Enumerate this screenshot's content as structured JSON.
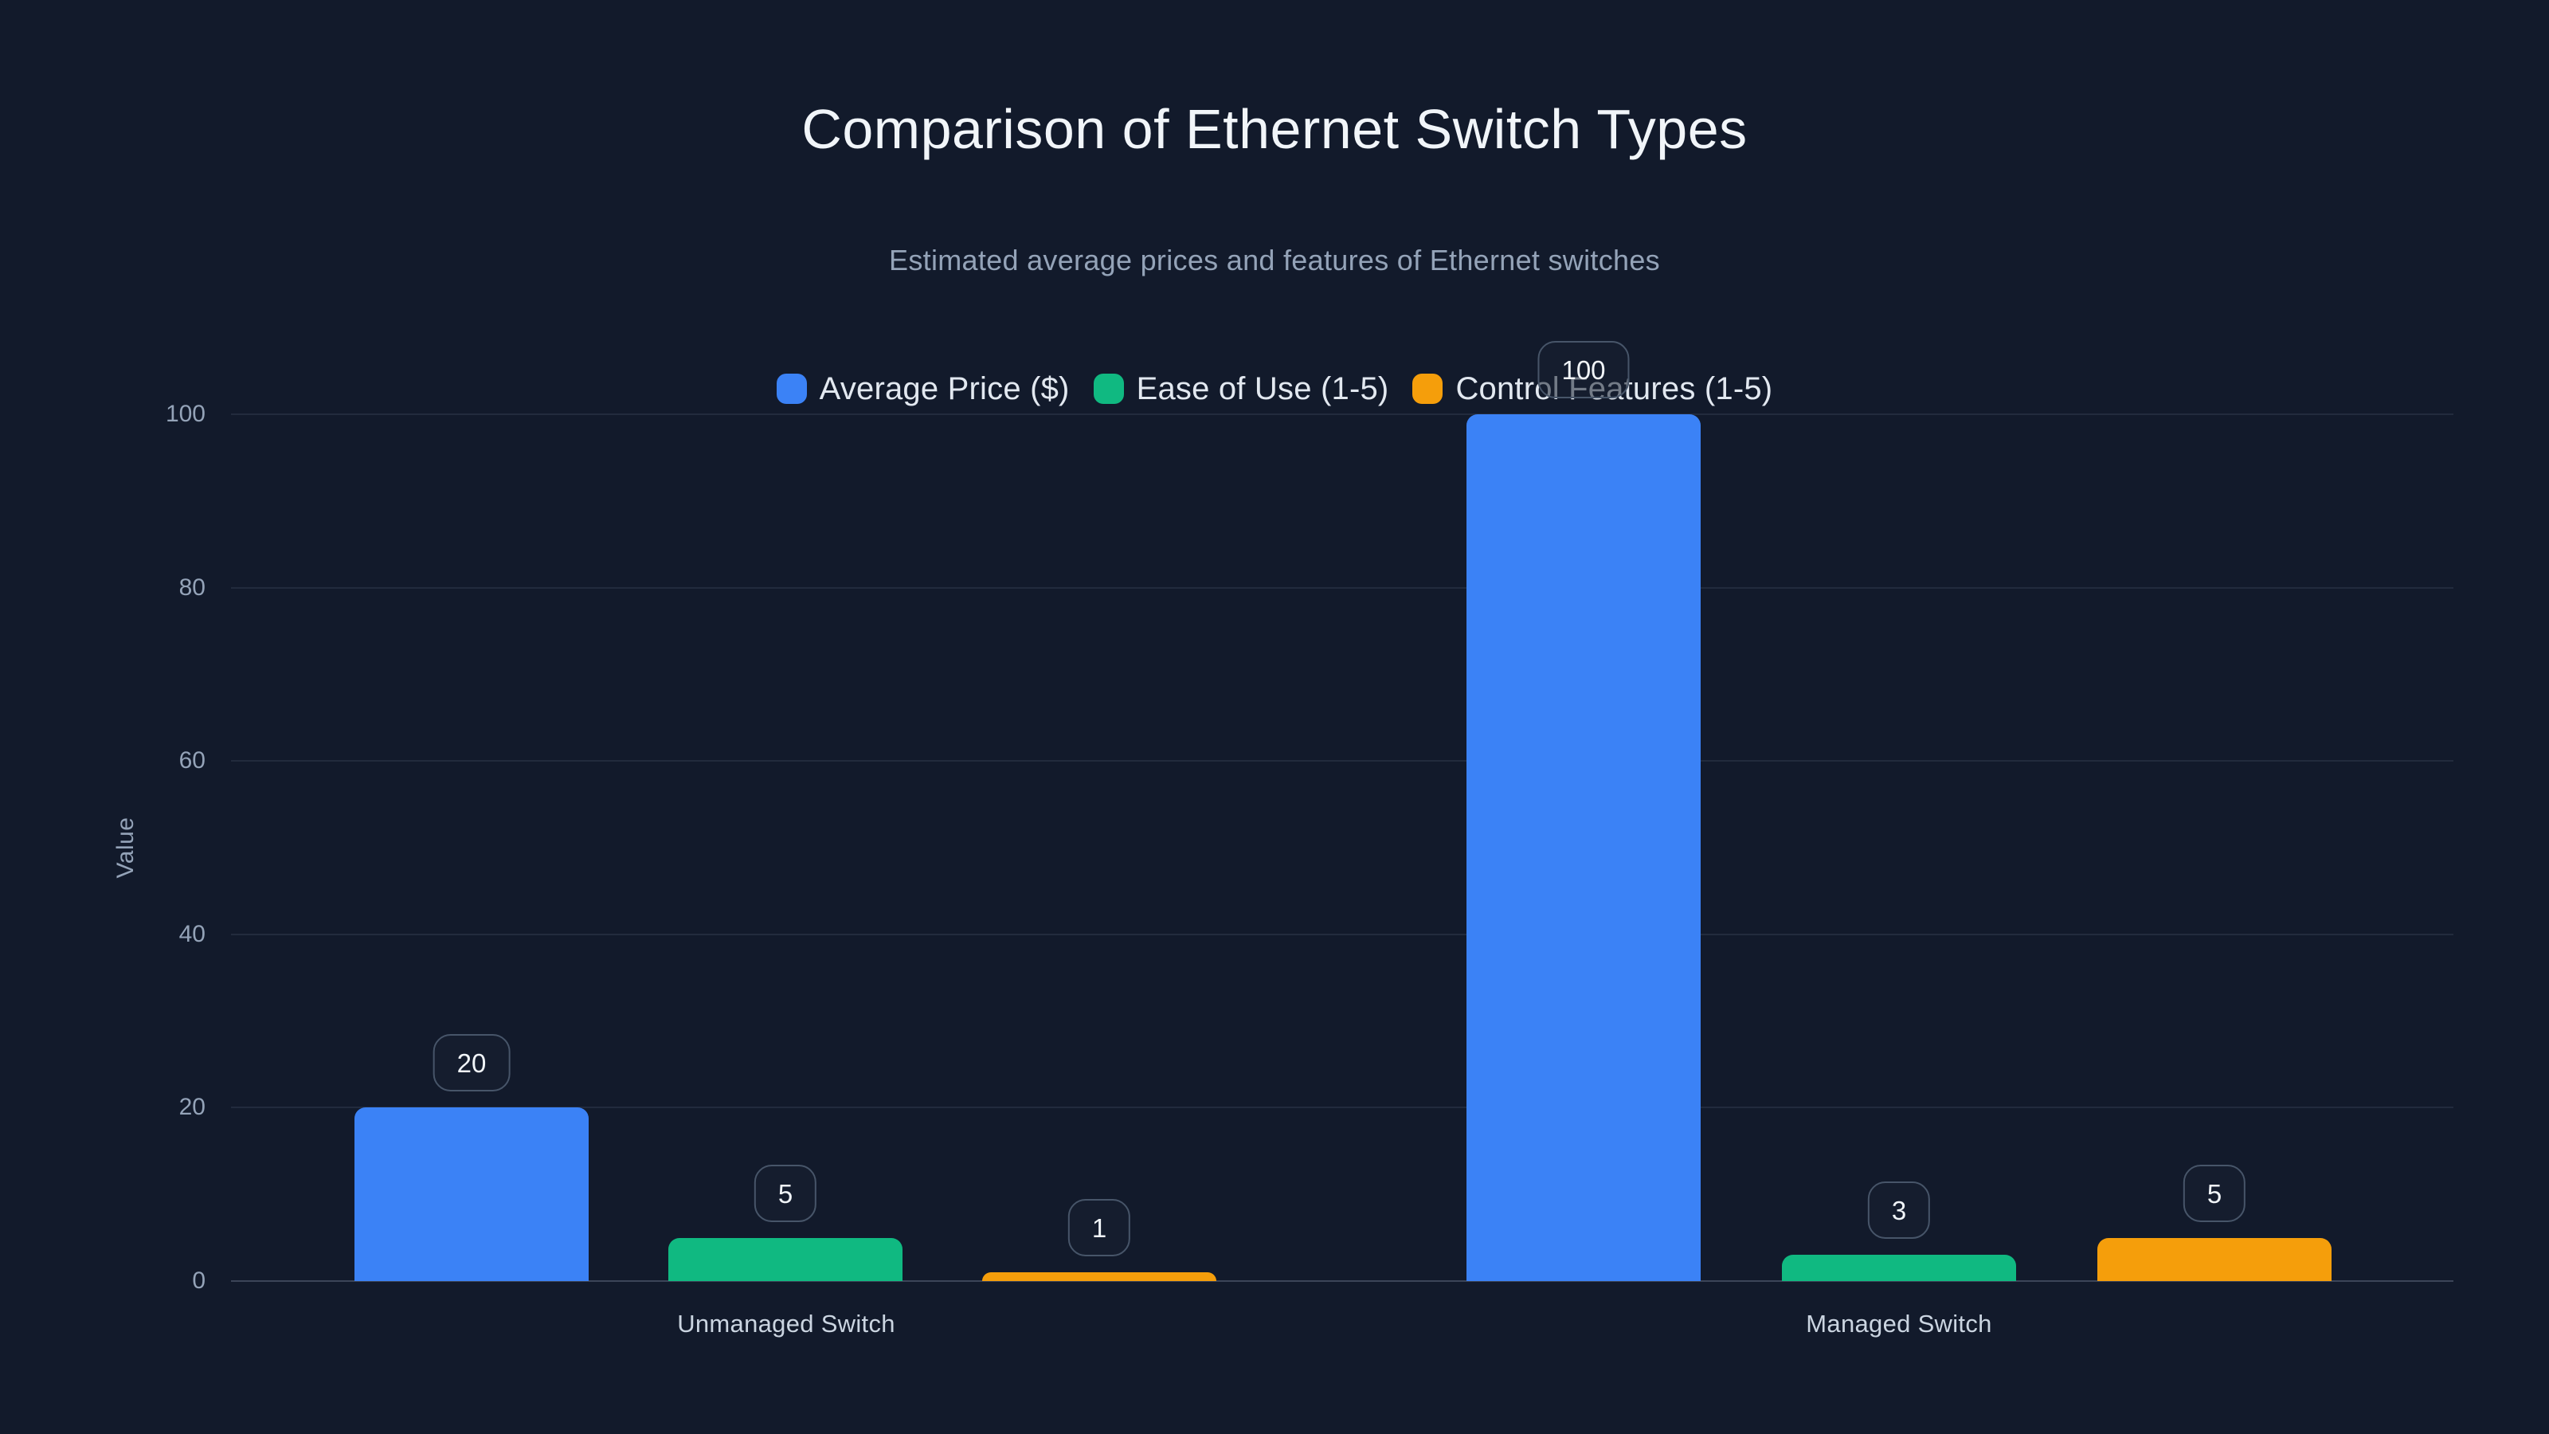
{
  "header": {
    "title": "Comparison of Ethernet Switch Types",
    "subtitle": "Estimated average prices and features of Ethernet switches"
  },
  "colors": {
    "background": "#121a2b",
    "title_text": "#f1f5f9",
    "subtitle_text": "#94a3b8",
    "legend_text": "#e2e8f0",
    "tick_text": "#94a3b8",
    "category_text": "#cbd5e1",
    "grid": "rgba(148,163,184,0.13)",
    "axis_line": "rgba(148,163,184,0.32)",
    "badge_border": "#475569",
    "badge_bg": "rgba(23,32,50,0.55)",
    "badge_text": "#f1f5f9",
    "series_blue": "#3b82f6",
    "series_green": "#10b981",
    "series_orange": "#f59e0b"
  },
  "chart_data": {
    "type": "bar",
    "title": "Comparison of Ethernet Switch Types",
    "subtitle": "Estimated average prices and features of Ethernet switches",
    "categories": [
      "Unmanaged Switch",
      "Managed Switch"
    ],
    "series": [
      {
        "name": "Average Price ($)",
        "color": "#3b82f6",
        "values": [
          20,
          100
        ]
      },
      {
        "name": "Ease of Use (1-5)",
        "color": "#10b981",
        "values": [
          5,
          3
        ]
      },
      {
        "name": "Control Features (1-5)",
        "color": "#f59e0b",
        "values": [
          1,
          5
        ]
      }
    ],
    "value_labels": {
      "Unmanaged Switch": [
        20,
        5,
        1
      ],
      "Managed Switch": [
        100,
        3,
        5
      ]
    },
    "xlabel": "",
    "ylabel": "Value",
    "ylim": [
      0,
      100
    ],
    "yticks": [
      0,
      20,
      40,
      60,
      80,
      100
    ],
    "grid": true,
    "legend_position": "top",
    "data_labels_shown": true
  }
}
